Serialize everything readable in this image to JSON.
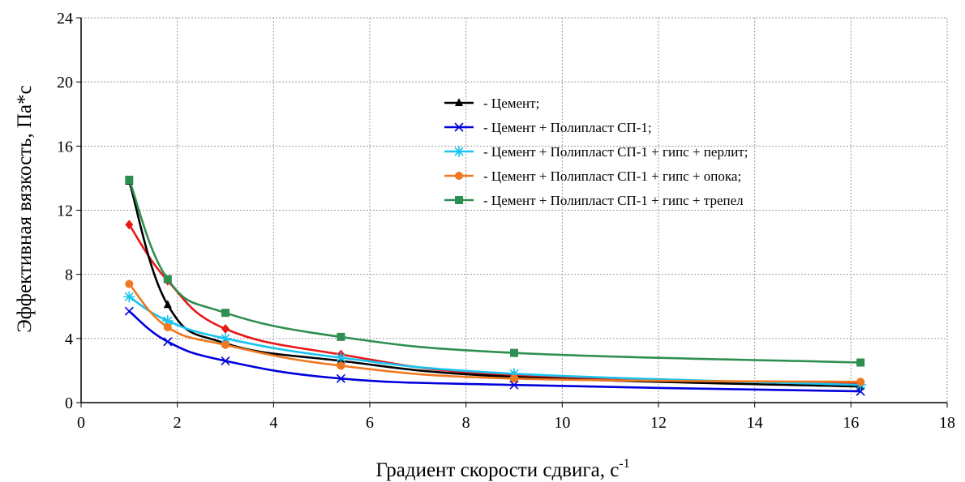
{
  "chart_data": {
    "type": "line",
    "xlabel": "Градиент скорости сдвига, с",
    "xlabel_sup": "-1",
    "ylabel": "Эффективная вязкость, Па*с",
    "xlim": [
      0,
      18
    ],
    "ylim": [
      0,
      24
    ],
    "xticks": [
      "0",
      "2",
      "4",
      "6",
      "8",
      "10",
      "12",
      "14",
      "16",
      "18"
    ],
    "yticks": [
      "0",
      "4",
      "8",
      "12",
      "16",
      "20",
      "24"
    ],
    "grid": true,
    "legend_position": "top-right",
    "series": [
      {
        "name": "- Цемент;",
        "color": "#000000",
        "marker": "triangle",
        "in_legend": true,
        "x": [
          1,
          1.8,
          3,
          5.4,
          9,
          16.2
        ],
        "y": [
          13.8,
          6.1,
          3.7,
          2.6,
          1.6,
          1.0
        ]
      },
      {
        "name": "- Цемент + Полипласт СП-1;",
        "color": "#0000dd",
        "marker": "x",
        "in_legend": true,
        "x": [
          1,
          1.8,
          3,
          5.4,
          9,
          16.2
        ],
        "y": [
          5.7,
          3.8,
          2.6,
          1.5,
          1.1,
          0.7
        ]
      },
      {
        "name": "- Цемент + Полипласт СП-1 + гипс + перлит;",
        "color": "#19c3f0",
        "marker": "star",
        "in_legend": true,
        "x": [
          1,
          1.8,
          3,
          5.4,
          9,
          16.2
        ],
        "y": [
          6.6,
          5.1,
          4.0,
          2.8,
          1.8,
          1.1
        ]
      },
      {
        "name": "- Цемент + Полипласт СП-1 + гипс + опока;",
        "color": "#f07820",
        "marker": "circle",
        "in_legend": true,
        "x": [
          1,
          1.8,
          3,
          5.4,
          9,
          16.2
        ],
        "y": [
          7.4,
          4.7,
          3.6,
          2.3,
          1.5,
          1.3
        ]
      },
      {
        "name": "- Цемент + Полипласт СП-1 + гипс + трепел",
        "color": "#2f8f50",
        "marker": "square",
        "in_legend": true,
        "x": [
          1,
          1.8,
          3,
          5.4,
          9,
          16.2
        ],
        "y": [
          13.9,
          7.7,
          5.6,
          4.1,
          3.1,
          2.5
        ]
      },
      {
        "color": "#e81818",
        "marker": "diamond",
        "in_legend": false,
        "x": [
          1,
          1.8,
          3,
          5.4,
          9,
          16.2
        ],
        "y": [
          11.1,
          7.6,
          4.6,
          3.0,
          1.7,
          1.2
        ]
      }
    ]
  }
}
